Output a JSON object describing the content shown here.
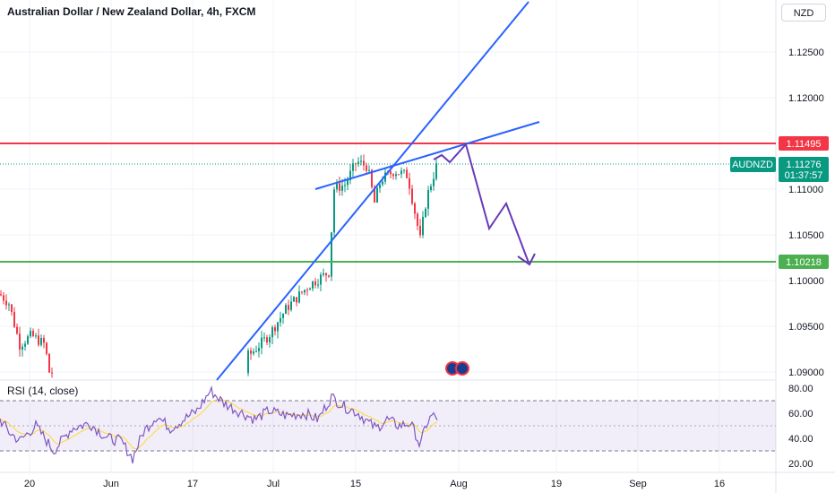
{
  "header": {
    "title": "Australian Dollar / New Zealand Dollar, 4h, FXCM",
    "currency_button": "NZD"
  },
  "price_axis": {
    "ticks": [
      "1.12500",
      "1.12000",
      "1.11000",
      "1.10500",
      "1.10000",
      "1.09500",
      "1.09000"
    ],
    "tick_values": [
      1.125,
      1.12,
      1.11,
      1.105,
      1.1,
      1.095,
      1.09
    ]
  },
  "levels": {
    "resistance": {
      "label": "1.11495",
      "value": 1.11495,
      "color": "#f23645"
    },
    "support": {
      "label": "1.10218",
      "value": 1.10218,
      "color": "#4caf50"
    },
    "current": {
      "symbol": "AUDNZD",
      "price": "1.11276",
      "countdown": "01:37:57",
      "value": 1.11276,
      "color": "#089981"
    }
  },
  "time_axis": {
    "labels": [
      "20",
      "Jun",
      "17",
      "Jul",
      "15",
      "Aug",
      "19",
      "Sep",
      "16"
    ]
  },
  "rsi": {
    "title": "RSI (14, close)",
    "ticks": [
      "80.00",
      "60.00",
      "40.00",
      "20.00"
    ],
    "tick_values": [
      80,
      60,
      40,
      20
    ],
    "band": [
      30,
      70
    ]
  },
  "colors": {
    "up": "#089981",
    "down": "#f23645",
    "trendline": "#2962ff",
    "projection": "#673ab7",
    "rsi_line": "#7e57c2",
    "rsi_ma": "#fdd835"
  },
  "chart_data": {
    "type": "candlestick",
    "symbol": "AUDNZD",
    "interval": "4h",
    "ylim": [
      1.088,
      1.1295
    ],
    "description_points": [
      {
        "date": "May 20",
        "close": 1.0985
      },
      {
        "date": "May 24",
        "close": 1.0935
      },
      {
        "date": "Jun 17",
        "close": 1.0895
      },
      {
        "date": "Jul 1",
        "close": 1.092
      },
      {
        "date": "Jul 8",
        "close": 1.0995
      },
      {
        "date": "Jul 11",
        "close": 1.1105
      },
      {
        "date": "Jul 15",
        "close": 1.113
      },
      {
        "date": "Jul 17",
        "close": 1.111
      },
      {
        "date": "Jul 19",
        "close": 1.112
      },
      {
        "date": "Jul 23",
        "close": 1.1045
      },
      {
        "date": "Jul 26",
        "close": 1.1128
      }
    ],
    "rsi_range": [
      20,
      80
    ],
    "icons": [
      "au-flag-icon",
      "nz-flag-icon"
    ]
  }
}
